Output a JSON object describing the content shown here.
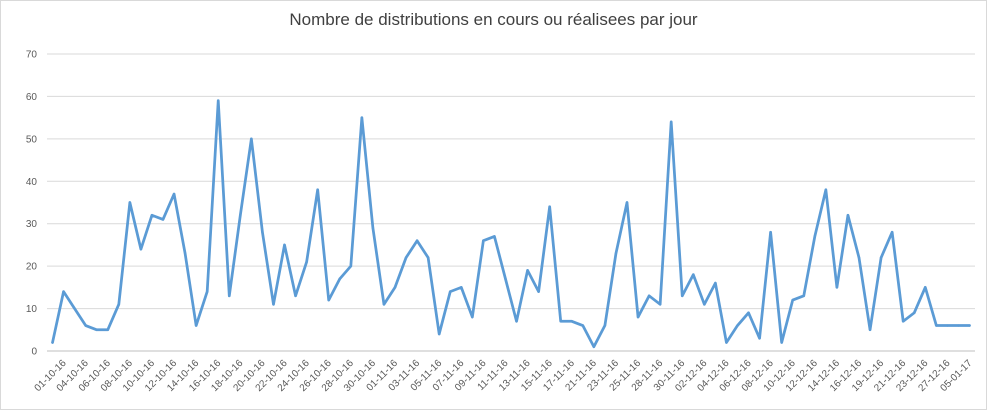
{
  "chart_data": {
    "type": "line",
    "title": "Nombre de distributions en cours ou réalisees par jour",
    "xlabel": "",
    "ylabel": "",
    "ylim": [
      0,
      70
    ],
    "yticks": [
      0,
      10,
      20,
      30,
      40,
      50,
      60,
      70
    ],
    "grid": true,
    "line_color": "#5b9bd5",
    "x_tick_labels": [
      "01-10-16",
      "04-10-16",
      "06-10-16",
      "08-10-16",
      "10-10-16",
      "12-10-16",
      "14-10-16",
      "16-10-16",
      "18-10-16",
      "20-10-16",
      "22-10-16",
      "24-10-16",
      "26-10-16",
      "28-10-16",
      "30-10-16",
      "01-11-16",
      "03-11-16",
      "05-11-16",
      "07-11-16",
      "09-11-16",
      "11-11-16",
      "13-11-16",
      "15-11-16",
      "17-11-16",
      "21-11-16",
      "23-11-16",
      "25-11-16",
      "28-11-16",
      "30-11-16",
      "02-12-16",
      "04-12-16",
      "06-12-16",
      "08-12-16",
      "10-12-16",
      "12-12-16",
      "14-12-16",
      "16-12-16",
      "19-12-16",
      "21-12-16",
      "23-12-16",
      "27-12-16",
      "05-01-17"
    ],
    "values": [
      2,
      14,
      10,
      6,
      5,
      5,
      11,
      35,
      24,
      32,
      31,
      37,
      23,
      6,
      14,
      59,
      13,
      32,
      50,
      28,
      11,
      25,
      13,
      21,
      38,
      12,
      17,
      20,
      55,
      29,
      11,
      15,
      22,
      26,
      22,
      4,
      14,
      15,
      8,
      26,
      27,
      17,
      7,
      19,
      14,
      34,
      7,
      7,
      6,
      1,
      6,
      23,
      35,
      8,
      13,
      11,
      54,
      13,
      18,
      11,
      16,
      2,
      6,
      9,
      3,
      28,
      2,
      12,
      13,
      27,
      38,
      15,
      32,
      22,
      5,
      22,
      28,
      7,
      9,
      15,
      6,
      6,
      6,
      6
    ]
  }
}
